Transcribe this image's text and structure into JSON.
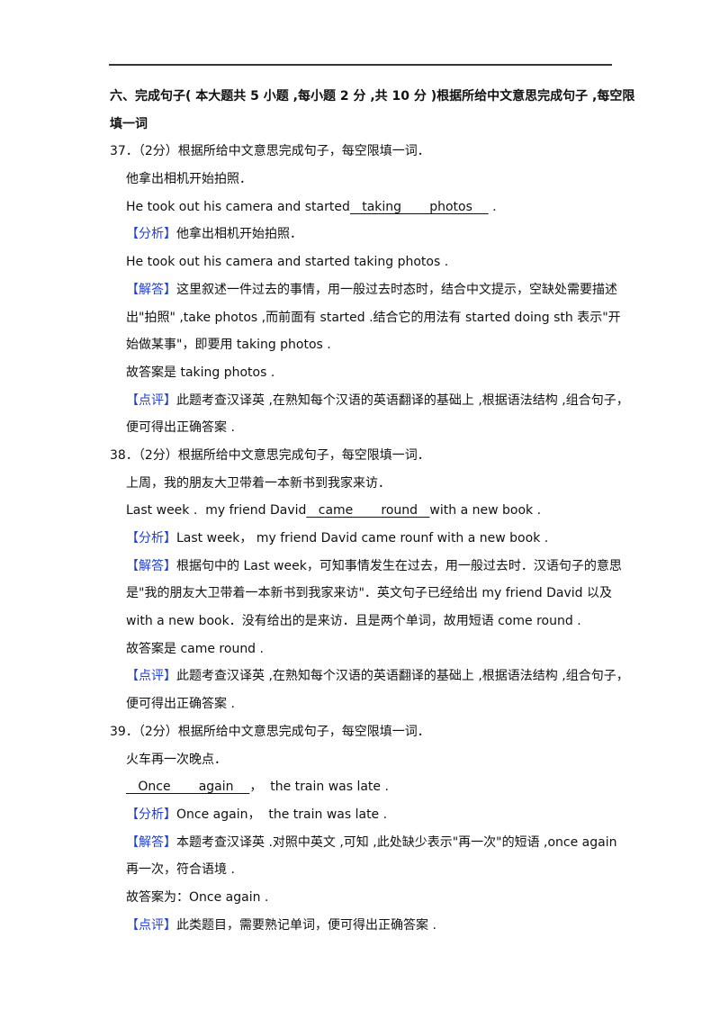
{
  "section": {
    "heading_lines": [
      "六、完成句子( 本大题共 5 小题 ,每小题 2 分 ,共 10 分 )根据所给中文意思完成句子 ,每空限",
      "填一词"
    ]
  },
  "colors": {
    "label": "#1f3fd6"
  },
  "questions": [
    {
      "number_line": "37．（2分）根据所给中文意思完成句子，每空限填一词．",
      "chinese": "他拿出相机开始拍照．",
      "sentence": {
        "before": "He took out his camera and started",
        "blank": "   taking       photos    ",
        "after": " ."
      },
      "analysis": {
        "label": "【分析】",
        "lines": [
          "他拿出相机开始拍照．"
        ]
      },
      "restated": "He took out his camera and started taking photos .",
      "explanation": {
        "label": "【解答】",
        "lines": [
          "这里叙述一件过去的事情，用一般过去时态时，结合中文提示，空缺处需要描述",
          "出\"拍照\" ,take photos ,而前面有 started .结合它的用法有 started doing sth 表示\"开",
          "始做某事\"，即要用 taking photos ."
        ]
      },
      "answer": "故答案是 taking photos .",
      "comment": {
        "label": "【点评】",
        "lines": [
          "此题考查汉译英 ,在熟知每个汉语的英语翻译的基础上 ,根据语法结构 ,组合句子，",
          "便可得出正确答案 ."
        ]
      }
    },
    {
      "number_line": "38．（2分）根据所给中文意思完成句子，每空限填一词．",
      "chinese": "上周，我的朋友大卫带着一本新书到我家来访．",
      "sentence": {
        "before": "Last week .  my friend David",
        "blank": "   came       round   ",
        "after": "with a new book ."
      },
      "analysis": {
        "label": "【分析】",
        "lines": [
          "Last week， my friend David came rounf with a new book ."
        ]
      },
      "restated": null,
      "explanation": {
        "label": "【解答】",
        "lines": [
          "根据句中的 Last week，可知事情发生在过去，用一般过去时．汉语句子的意思",
          "是\"我的朋友大卫带着一本新书到我家来访\"．英文句子已经给出 my friend David 以及",
          "with a new book．没有给出的是来访．且是两个单词，故用短语 come round ."
        ]
      },
      "answer": "故答案是 came round .",
      "comment": {
        "label": "【点评】",
        "lines": [
          "此题考查汉译英 ,在熟知每个汉语的英语翻译的基础上 ,根据语法结构 ,组合句子，",
          "便可得出正确答案 ."
        ]
      }
    },
    {
      "number_line": "39．（2分）根据所给中文意思完成句子，每空限填一词．",
      "chinese": "火车再一次晚点．",
      "sentence": {
        "before": "",
        "blank": "   Once       again    ",
        "after": "，  the train was late ."
      },
      "analysis": {
        "label": "【分析】",
        "lines": [
          "Once again，  the train was late ."
        ]
      },
      "restated": null,
      "explanation": {
        "label": "【解答】",
        "lines": [
          "本题考查汉译英 .对照中英文 ,可知 ,此处缺少表示\"再一次\"的短语 ,once again",
          "再一次，符合语境 ."
        ]
      },
      "answer": "故答案为：Once again .",
      "comment": {
        "label": "【点评】",
        "lines": [
          "此类题目，需要熟记单词，便可得出正确答案 ."
        ]
      }
    }
  ]
}
